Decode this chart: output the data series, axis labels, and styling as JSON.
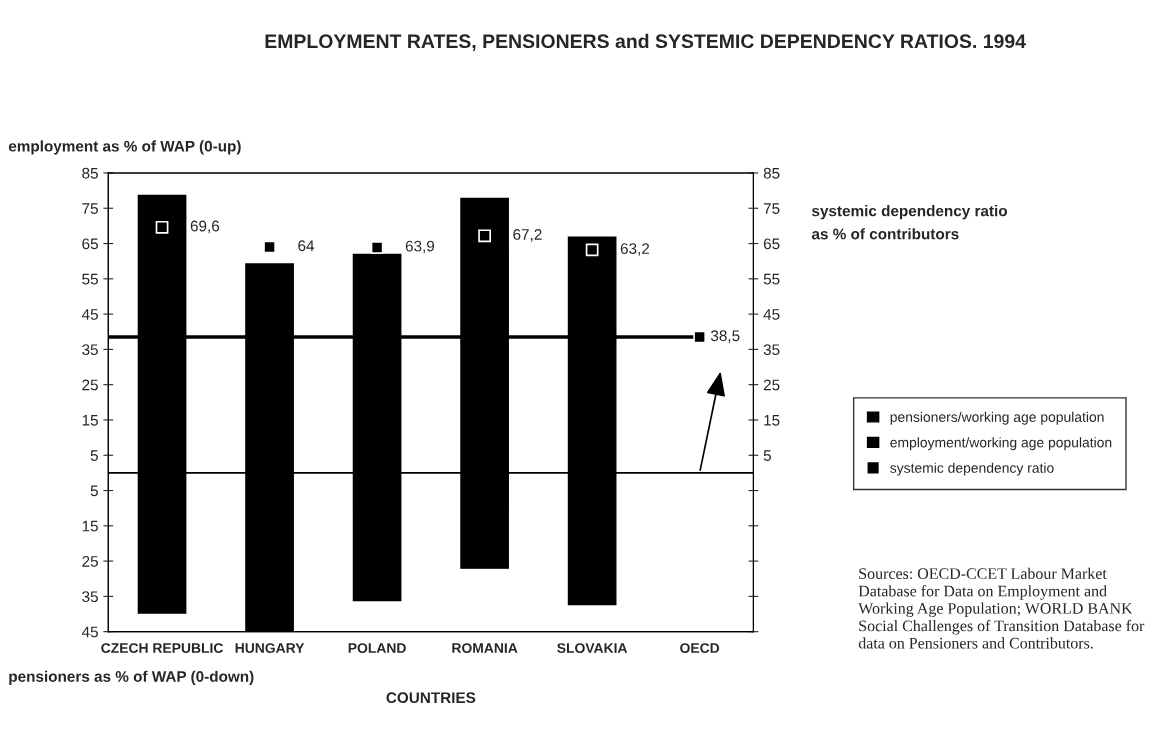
{
  "chart_data": {
    "type": "bar",
    "title": "EMPLOYMENT RATES, PENSIONERS and SYSTEMIC DEPENDENCY RATIOS. 1994",
    "xlabel": "COUNTRIES",
    "ylabel": "employment as % of WAP (0-up)",
    "y2label": "systemic dependency ratio\nas % of contributors",
    "categories": [
      "CZECH REPUBLIC",
      "HUNGARY",
      "POLAND",
      "ROMANIA",
      "SLOVAKIA",
      "OECD"
    ],
    "stacked": true,
    "series": [
      {
        "name": "pensioners/working age population",
        "color": "#000000",
        "values": [
          -39.7,
          -44.9,
          -36.2,
          -27,
          -37.3,
          null
        ]
      },
      {
        "name": "employment/working age population",
        "color": "#000000",
        "values": [
          78.6,
          59.2,
          61.9,
          77.8,
          66.8,
          null
        ]
      },
      {
        "name": "systemic dependency ratio",
        "type": "scatter",
        "axis": "y2",
        "marker": "square",
        "color": "#000000",
        "values": [
          69.6,
          64,
          63.9,
          67.2,
          63.2,
          38.5
        ],
        "value_labels": [
          "69,6",
          "64",
          "63,9",
          "67,2",
          "63,2",
          "38,5"
        ]
      }
    ],
    "ylim": [
      -45,
      85
    ],
    "yticks": [
      {
        "value": -45,
        "label": "45"
      },
      {
        "value": -35,
        "label": "35"
      },
      {
        "value": -25,
        "label": "25"
      },
      {
        "value": -15,
        "label": "15"
      },
      {
        "value": -5,
        "label": "5"
      },
      5,
      15,
      25,
      35,
      45,
      55,
      65,
      75,
      85
    ],
    "y2lim": [
      -45,
      85
    ],
    "y2ticks": [
      {
        "value": -45,
        "label": null
      },
      {
        "value": -35,
        "label": null
      },
      {
        "value": -25,
        "label": null
      },
      {
        "value": -15,
        "label": null
      },
      {
        "value": -5,
        "label": null
      },
      5,
      15,
      25,
      35,
      45,
      55,
      65,
      75,
      85
    ],
    "ref_lines": [
      {
        "axis": "y",
        "value": 0,
        "color": "#000000"
      },
      {
        "axis": "y2",
        "value": 38.5,
        "color": "#000000"
      }
    ],
    "legend": "right",
    "grid": false,
    "annotations": [
      "pensioners as % of WAP (0-down)",
      "Sources: OECD-CCET Labour Market Database for Data on Employment and Working Age Population; WORLD BANK Social Challenges of Transition Database for data on Pensioners and Contributors."
    ]
  }
}
